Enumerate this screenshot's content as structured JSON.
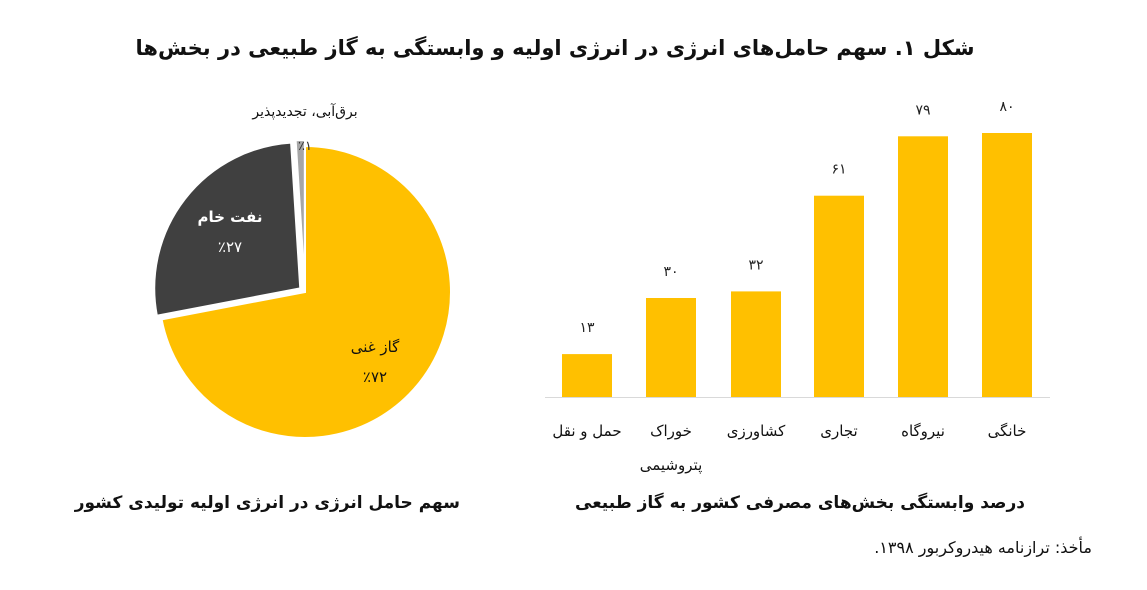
{
  "title": "شکل ۱. سهم حامل‌های انرژی در انرژی اولیه و وابستگی به گاز طبیعی در بخش‌ها",
  "source": "مأخذ: ترازنامه هیدروکربور ۱۳۹۸.",
  "colors": {
    "gas": "#FFC000",
    "oil": "#404040",
    "renewable": "#A6A6A6",
    "bar": "#FFC000"
  },
  "chart_data": [
    {
      "type": "pie",
      "title": "سهم حامل انرژی در انرژی اولیه تولیدی کشور",
      "slices": [
        {
          "name": "گاز غنی",
          "value": 72,
          "label": "٪۷۲"
        },
        {
          "name": "نفت خام",
          "value": 27,
          "label": "٪۲۷"
        },
        {
          "name": "برق‌آبی، تجدیدپذیر",
          "value": 1,
          "label": "٪۱"
        }
      ]
    },
    {
      "type": "bar",
      "title": "درصد وابستگی بخش‌های مصرفی کشور به گاز طبیعی",
      "categories": [
        "خانگی",
        "نیروگاه",
        "تجاری",
        "کشاورزی",
        "خوراک پتروشیمی",
        "حمل و نقل"
      ],
      "category_lines": [
        [
          "خانگی"
        ],
        [
          "نیروگاه"
        ],
        [
          "تجاری"
        ],
        [
          "کشاورزی"
        ],
        [
          "خوراک",
          "پتروشیمی"
        ],
        [
          "حمل و نقل"
        ]
      ],
      "values": [
        80,
        79,
        61,
        32,
        30,
        13
      ],
      "value_labels": [
        "۸۰",
        "۷۹",
        "۶۱",
        "۳۲",
        "۳۰",
        "۱۳"
      ],
      "ylim": [
        0,
        80
      ],
      "grid": false,
      "direction": "right-to-left"
    }
  ]
}
